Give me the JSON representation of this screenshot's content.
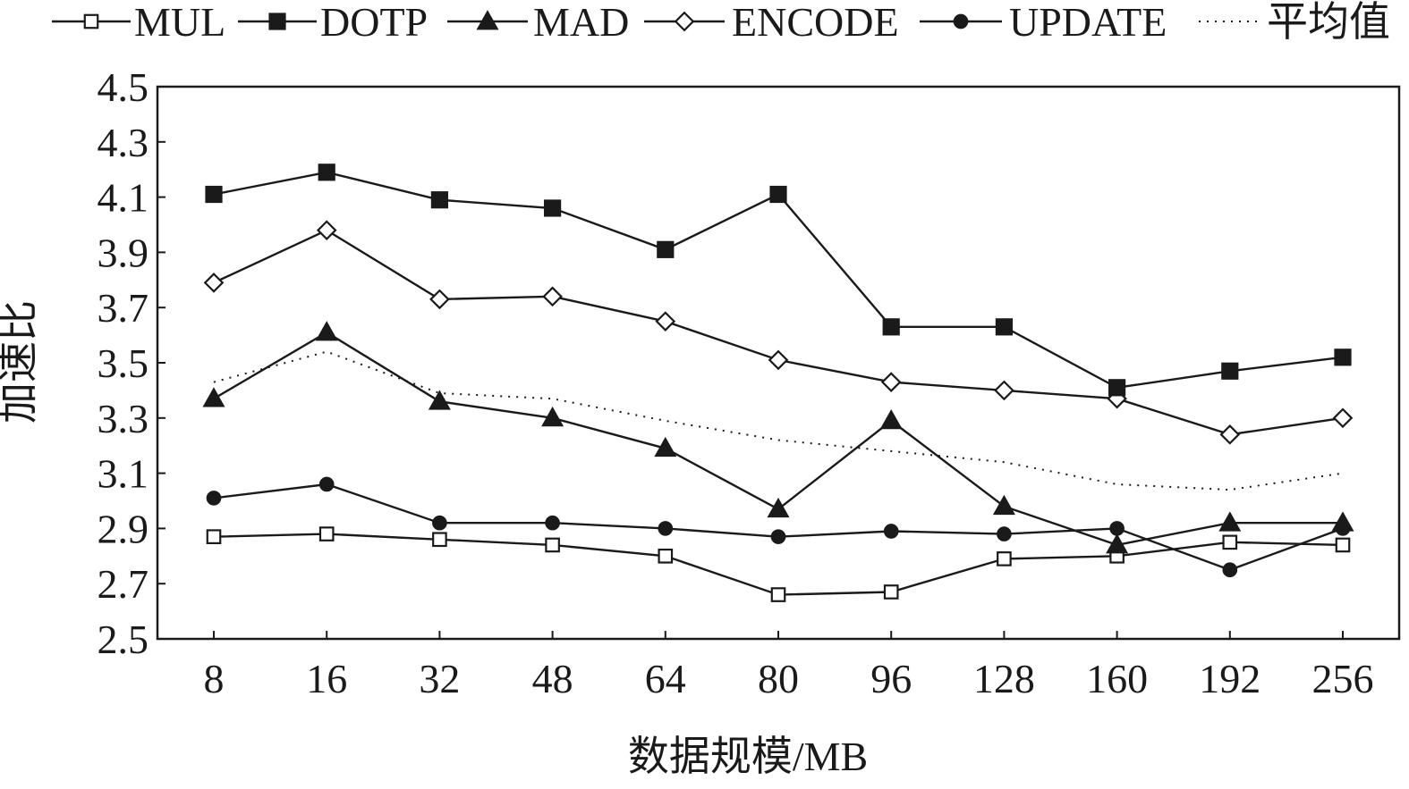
{
  "chart_data": {
    "type": "line",
    "xlabel": "数据规模/MB",
    "ylabel": "加速比",
    "ylim": [
      2.5,
      4.5
    ],
    "yticks": [
      "2.5",
      "2.7",
      "2.9",
      "3.1",
      "3.3",
      "3.5",
      "3.7",
      "3.9",
      "4.1",
      "4.3",
      "4.5"
    ],
    "categories": [
      "8",
      "16",
      "32",
      "48",
      "64",
      "80",
      "96",
      "128",
      "160",
      "192",
      "256"
    ],
    "grid": false,
    "legend_position": "top",
    "series": [
      {
        "name": "MUL",
        "marker": "square-open",
        "style": "solid",
        "values": [
          2.87,
          2.88,
          2.86,
          2.84,
          2.8,
          2.66,
          2.67,
          2.79,
          2.8,
          2.85,
          2.84
        ]
      },
      {
        "name": "DOTP",
        "marker": "square-filled",
        "style": "solid",
        "values": [
          4.11,
          4.19,
          4.09,
          4.06,
          3.91,
          4.11,
          3.63,
          3.63,
          3.41,
          3.47,
          3.52
        ]
      },
      {
        "name": "MAD",
        "marker": "triangle-filled",
        "style": "solid",
        "values": [
          3.37,
          3.61,
          3.36,
          3.3,
          3.19,
          2.97,
          3.29,
          2.98,
          2.84,
          2.92,
          2.92
        ]
      },
      {
        "name": "ENCODE",
        "marker": "diamond-open",
        "style": "solid",
        "values": [
          3.79,
          3.98,
          3.73,
          3.74,
          3.65,
          3.51,
          3.43,
          3.4,
          3.37,
          3.24,
          3.3
        ]
      },
      {
        "name": "UPDATE",
        "marker": "circle-filled",
        "style": "solid",
        "values": [
          3.01,
          3.06,
          2.92,
          2.92,
          2.9,
          2.87,
          2.89,
          2.88,
          2.9,
          2.75,
          2.9
        ]
      },
      {
        "name": "平均值",
        "marker": "none",
        "style": "dotted",
        "values": [
          3.43,
          3.54,
          3.39,
          3.37,
          3.29,
          3.22,
          3.18,
          3.14,
          3.06,
          3.04,
          3.1
        ]
      }
    ]
  }
}
